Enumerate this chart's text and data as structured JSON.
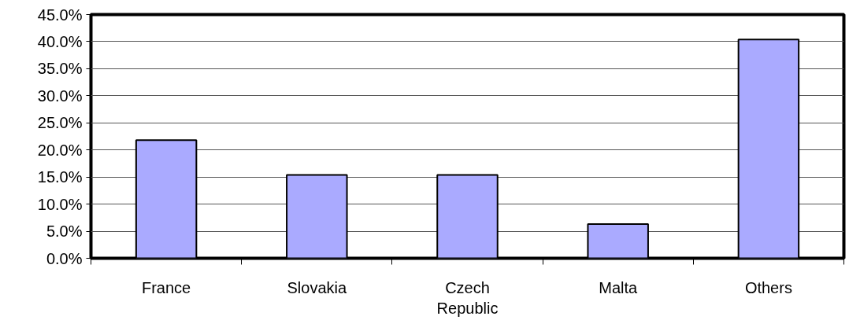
{
  "chart_data": {
    "type": "bar",
    "categories": [
      "France",
      "Slovakia",
      "Czech Republic",
      "Malta",
      "Others"
    ],
    "values": [
      21.8,
      15.4,
      15.4,
      6.3,
      40.4
    ],
    "color": "#aaaaff",
    "ylim": [
      0,
      45
    ],
    "yticks": [
      {
        "value": 0,
        "label": "0.0%"
      },
      {
        "value": 5,
        "label": "5.0%"
      },
      {
        "value": 10,
        "label": "10.0%"
      },
      {
        "value": 15,
        "label": "15.0%"
      },
      {
        "value": 20,
        "label": "20.0%"
      },
      {
        "value": 25,
        "label": "25.0%"
      },
      {
        "value": 30,
        "label": "30.0%"
      },
      {
        "value": 35,
        "label": "35.0%"
      },
      {
        "value": 40,
        "label": "40.0%"
      },
      {
        "value": 45,
        "label": "45.0%"
      }
    ],
    "grid": "y"
  }
}
